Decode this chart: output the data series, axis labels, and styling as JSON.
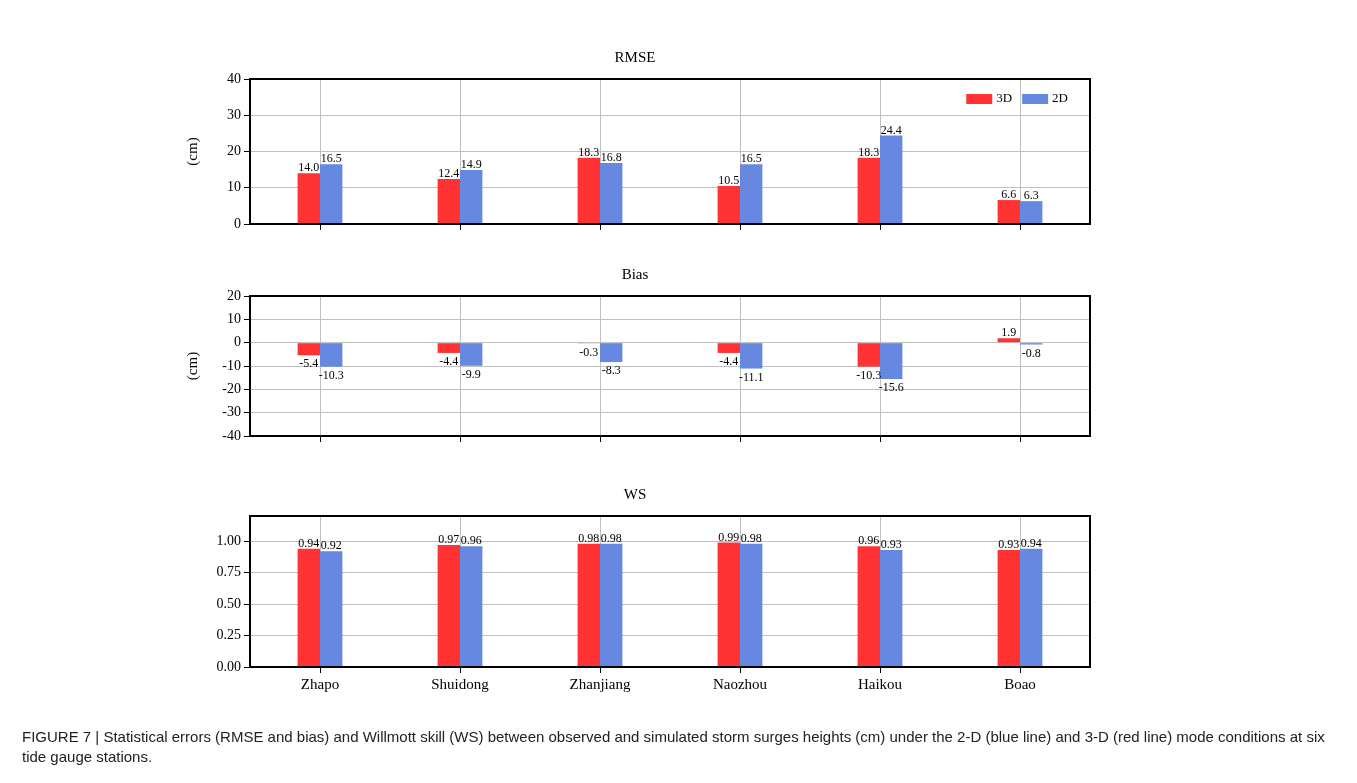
{
  "chart_data": [
    {
      "type": "bar",
      "title": "RMSE",
      "ylabel": "(cm)",
      "categories": [
        null,
        null,
        null,
        null,
        null,
        null
      ],
      "series": [
        {
          "name": "3D",
          "color": "#ff3333",
          "values": [
            14.0,
            12.4,
            18.3,
            10.5,
            18.3,
            6.6
          ],
          "value_labels": [
            "14.0",
            "12.4",
            "18.3",
            "10.5",
            "18.3",
            "6.6"
          ]
        },
        {
          "name": "2D",
          "color": "#6688e0",
          "values": [
            16.5,
            14.9,
            16.8,
            16.5,
            24.4,
            6.3
          ],
          "value_labels": [
            "16.5",
            "14.9",
            "16.8",
            "16.5",
            "24.4",
            "6.3"
          ]
        }
      ],
      "ylim": [
        0,
        40
      ],
      "yticks": [
        0,
        10,
        20,
        30,
        40
      ],
      "grid": true,
      "legend": "top right",
      "tick_labels": "y"
    },
    {
      "type": "bar",
      "title": "Bias",
      "ylabel": "(cm)",
      "categories": [
        null,
        null,
        null,
        null,
        null,
        null
      ],
      "series": [
        {
          "color": "#ff3333",
          "values": [
            -5.4,
            -4.4,
            -0.3,
            -4.4,
            -10.3,
            1.9
          ],
          "value_labels": [
            "-5.4",
            "-4.4",
            "-0.3",
            "-4.4",
            "-10.3",
            "1.9"
          ]
        },
        {
          "color": "#6688e0",
          "values": [
            -10.3,
            -9.9,
            -8.3,
            -11.1,
            -15.6,
            -0.8
          ],
          "value_labels": [
            "-10.3",
            "-9.9",
            "-8.3",
            "-11.1",
            "-15.6",
            "-0.8"
          ]
        }
      ],
      "ylim": [
        -40,
        20
      ],
      "yticks": [
        -40,
        -30,
        -20,
        -10,
        0,
        10,
        20
      ],
      "grid": true,
      "tick_labels": "y"
    },
    {
      "type": "bar",
      "title": "WS",
      "categories": [
        "Zhapo",
        "Shuidong",
        "Zhanjiang",
        "Naozhou",
        "Haikou",
        "Boao"
      ],
      "series": [
        {
          "color": "#ff3333",
          "values": [
            0.94,
            0.97,
            0.98,
            0.99,
            0.96,
            0.93
          ],
          "value_labels": [
            "0.94",
            "0.97",
            "0.98",
            "0.99",
            "0.96",
            "0.93"
          ]
        },
        {
          "color": "#6688e0",
          "values": [
            0.92,
            0.96,
            0.98,
            0.98,
            0.93,
            0.94
          ],
          "value_labels": [
            "0.92",
            "0.96",
            "0.98",
            "0.98",
            "0.93",
            "0.94"
          ]
        }
      ],
      "ylim": [
        0,
        1.2
      ],
      "yticks": [
        {
          "value": 0,
          "label": "0.00"
        },
        {
          "value": 0.25,
          "label": "0.25"
        },
        {
          "value": 0.5,
          "label": "0.50"
        },
        {
          "value": 0.75,
          "label": "0.75"
        },
        {
          "value": 1,
          "label": "1.00"
        }
      ],
      "grid": true,
      "annotations": [
        "FIGURE 7 | Statistical errors (RMSE and bias) and Willmott skill (WS) between observed and simulated storm surges heights (cm) under the 2-D (blue line) and 3-D (red line) mode conditions at six tide gauge stations."
      ]
    }
  ]
}
